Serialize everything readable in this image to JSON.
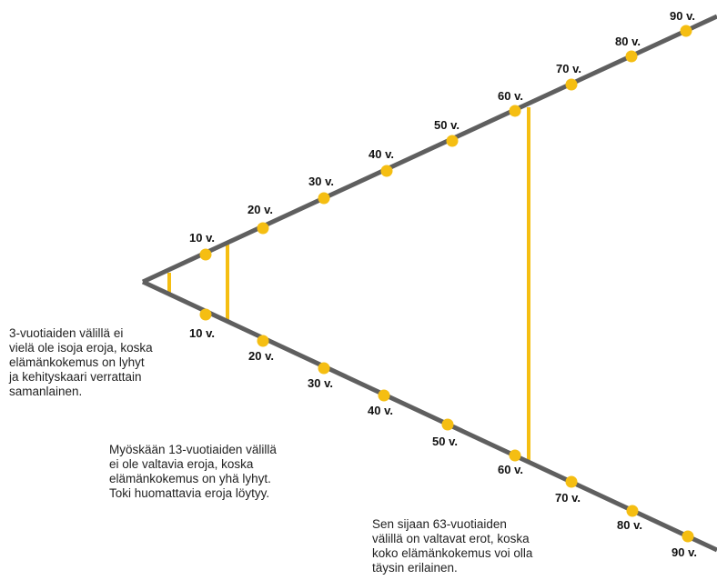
{
  "colors": {
    "line": "#5f5f5f",
    "marker": "#f5be12",
    "text": "#111111"
  },
  "upper_labels": [
    "10 v.",
    "20 v.",
    "30 v.",
    "40 v.",
    "50 v.",
    "60 v.",
    "70 v.",
    "80 v.",
    "90 v."
  ],
  "lower_labels": [
    "10 v.",
    "20 v.",
    "30 v.",
    "40 v.",
    "50 v.",
    "60 v.",
    "70 v.",
    "80 v.",
    "90 v."
  ],
  "notes": [
    {
      "lines": [
        "3-vuotiaiden välillä ei",
        "vielä ole isoja eroja, koska",
        "elämänkokemus on lyhyt",
        "ja kehityskaari verrattain",
        "samanlainen."
      ]
    },
    {
      "lines": [
        "Myöskään 13-vuotiaiden välillä",
        "ei ole valtavia eroja, koska",
        "elämänkokemus on yhä lyhyt.",
        "Toki huomattavia eroja löytyy."
      ]
    },
    {
      "lines": [
        "Sen sijaan 63-vuotiaiden",
        "välillä on valtavat erot, koska",
        "koko elämänkokemus voi olla",
        "täysin erilainen."
      ]
    }
  ]
}
